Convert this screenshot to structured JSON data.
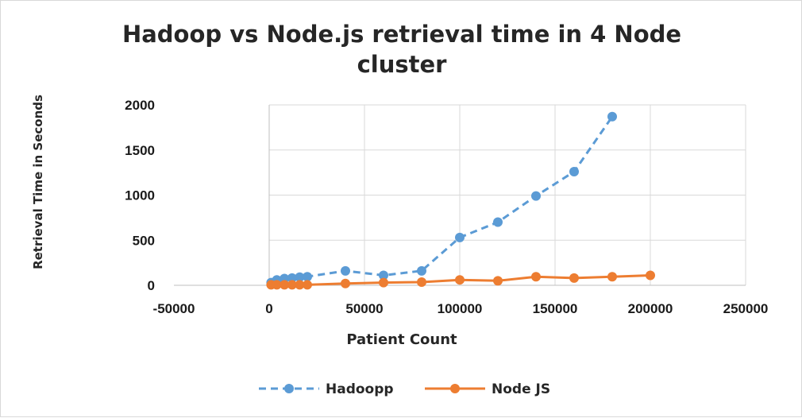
{
  "chart_data": {
    "type": "scatter",
    "title_lines": [
      "Hadoop vs Node.js retrieval time in 4 Node",
      "cluster"
    ],
    "xlabel": "Patient Count",
    "ylabel": "Retrieval Time in Seconds",
    "xlim": [
      -50000,
      250000
    ],
    "ylim": [
      0,
      2000
    ],
    "x_ticks": [
      -50000,
      0,
      50000,
      100000,
      150000,
      200000,
      250000
    ],
    "y_ticks": [
      0,
      500,
      1000,
      1500,
      2000
    ],
    "grid": true,
    "legend_position": "bottom",
    "series": [
      {
        "name": "Hadoopp",
        "color": "#5b9bd5",
        "line_style": "dashed",
        "marker": "circle",
        "points": [
          [
            1000,
            30
          ],
          [
            4000,
            60
          ],
          [
            8000,
            75
          ],
          [
            12000,
            80
          ],
          [
            16000,
            90
          ],
          [
            20000,
            95
          ],
          [
            40000,
            160
          ],
          [
            60000,
            110
          ],
          [
            80000,
            160
          ],
          [
            100000,
            530
          ],
          [
            120000,
            700
          ],
          [
            140000,
            990
          ],
          [
            160000,
            1260
          ],
          [
            180000,
            1870
          ]
        ]
      },
      {
        "name": "Node JS",
        "color": "#ed7d31",
        "line_style": "solid",
        "marker": "circle",
        "points": [
          [
            1000,
            5
          ],
          [
            4000,
            5
          ],
          [
            8000,
            5
          ],
          [
            12000,
            5
          ],
          [
            16000,
            5
          ],
          [
            20000,
            5
          ],
          [
            40000,
            20
          ],
          [
            60000,
            30
          ],
          [
            80000,
            35
          ],
          [
            100000,
            60
          ],
          [
            120000,
            50
          ],
          [
            140000,
            95
          ],
          [
            160000,
            80
          ],
          [
            180000,
            95
          ],
          [
            200000,
            110
          ]
        ]
      }
    ]
  }
}
